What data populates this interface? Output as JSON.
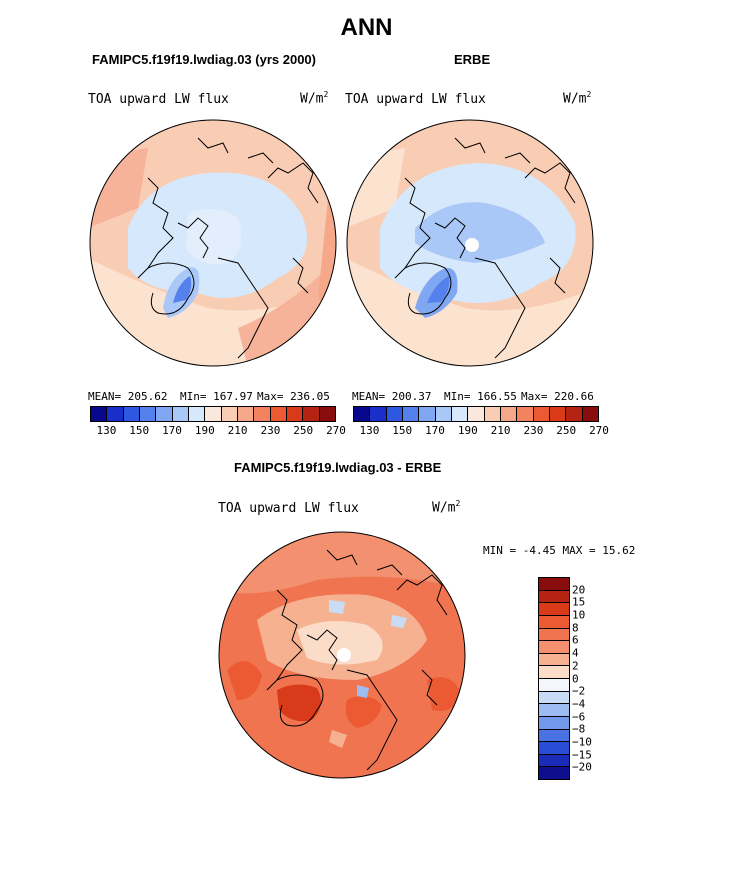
{
  "title": "ANN",
  "panel_left": {
    "case": "FAMIPC5.f19f19.lwdiag.03 (yrs 2000)",
    "variable": "TOA upward LW flux",
    "units_base": "W/m",
    "units_exp": "2",
    "stats": {
      "mean": "MEAN= 205.62",
      "min": "MIn= 167.97",
      "max": "Max= 236.05"
    }
  },
  "panel_right": {
    "case": "ERBE",
    "variable": "TOA upward LW flux",
    "units_base": "W/m",
    "units_exp": "2",
    "stats": {
      "mean": "MEAN= 200.37",
      "min": "MIn= 166.55",
      "max": "Max= 220.66"
    }
  },
  "panel_diff": {
    "case": "FAMIPC5.f19f19.lwdiag.03 - ERBE",
    "variable": "TOA upward LW flux",
    "units_base": "W/m",
    "units_exp": "2",
    "stats": "MIN =  -4.45 MAX =  15.62"
  },
  "colorbar_abs": {
    "colors": [
      "#08088c",
      "#1a2fc9",
      "#2f58e0",
      "#5581ec",
      "#80a8f2",
      "#aac8f7",
      "#d6e8fb",
      "#fbe8dc",
      "#f9cdb4",
      "#f6a88a",
      "#f3825f",
      "#ec5a33",
      "#d83a1a",
      "#b52313",
      "#8a0d0d"
    ],
    "labels": [
      "130",
      "150",
      "170",
      "190",
      "210",
      "230",
      "250",
      "270"
    ]
  },
  "colorbar_diff": {
    "colors": [
      "#8a0d0d",
      "#b52313",
      "#d83a1a",
      "#ec5a33",
      "#f0744f",
      "#f3906f",
      "#f6b191",
      "#fbdcc9",
      "#f3f7fc",
      "#c8dcf6",
      "#9dbdf2",
      "#7399ec",
      "#4a72e3",
      "#2a4dd6",
      "#1a2bb8",
      "#0e0e8f"
    ],
    "labels": [
      "20",
      "15",
      "10",
      "8",
      "6",
      "4",
      "2",
      "0",
      "−2",
      "−4",
      "−6",
      "−8",
      "−10",
      "−15",
      "−20"
    ]
  }
}
